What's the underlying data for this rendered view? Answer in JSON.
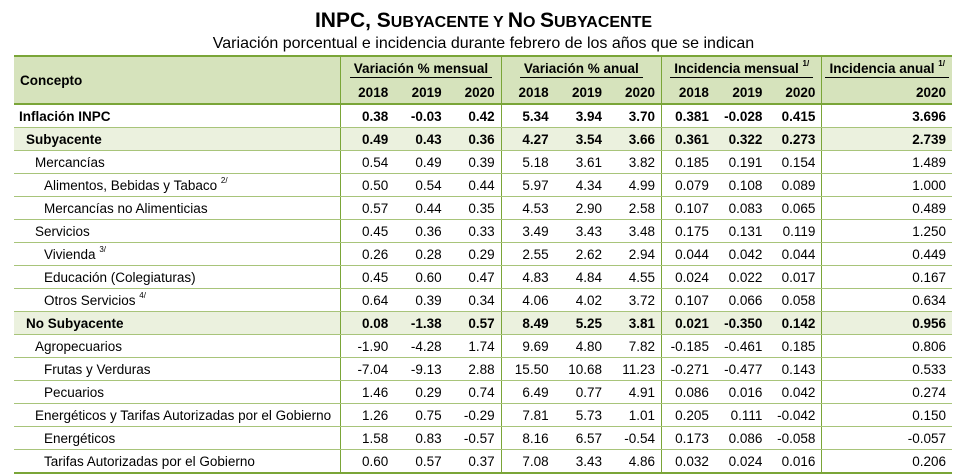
{
  "title": {
    "prefix": "INPC, ",
    "s_big": "S",
    "s_small": "UBYACENTE ",
    "y_small": "Y ",
    "n_big": "N",
    "n_small": "O ",
    "s2_big": "S",
    "s2_small": "UBYACENTE"
  },
  "subtitle": "Variación porcentual e incidencia durante febrero de los años que se indican",
  "headers": {
    "concept": "Concepto",
    "groups": [
      {
        "label": "Variación % mensual",
        "note": ""
      },
      {
        "label": "Variación % anual",
        "note": ""
      },
      {
        "label": "Incidencia mensual",
        "note": "1/"
      },
      {
        "label": "Incidencia anual",
        "note": "1/"
      }
    ],
    "years": [
      "2018",
      "2019",
      "2020",
      "2018",
      "2019",
      "2020",
      "2018",
      "2019",
      "2020",
      "2020"
    ]
  },
  "rows": [
    {
      "label": "Inflación INPC",
      "note": "",
      "values": [
        "0.38",
        "-0.03",
        "0.42",
        "5.34",
        "3.94",
        "3.70",
        "0.381",
        "-0.028",
        "0.415",
        "3.696"
      ]
    },
    {
      "label": "Subyacente",
      "note": "",
      "values": [
        "0.49",
        "0.43",
        "0.36",
        "4.27",
        "3.54",
        "3.66",
        "0.361",
        "0.322",
        "0.273",
        "2.739"
      ]
    },
    {
      "label": "Mercancías",
      "note": "",
      "values": [
        "0.54",
        "0.49",
        "0.39",
        "5.18",
        "3.61",
        "3.82",
        "0.185",
        "0.191",
        "0.154",
        "1.489"
      ]
    },
    {
      "label": "Alimentos, Bebidas y Tabaco",
      "note": "2/",
      "values": [
        "0.50",
        "0.54",
        "0.44",
        "5.97",
        "4.34",
        "4.99",
        "0.079",
        "0.108",
        "0.089",
        "1.000"
      ]
    },
    {
      "label": "Mercancías no Alimenticias",
      "note": "",
      "values": [
        "0.57",
        "0.44",
        "0.35",
        "4.53",
        "2.90",
        "2.58",
        "0.107",
        "0.083",
        "0.065",
        "0.489"
      ]
    },
    {
      "label": "Servicios",
      "note": "",
      "values": [
        "0.45",
        "0.36",
        "0.33",
        "3.49",
        "3.43",
        "3.48",
        "0.175",
        "0.131",
        "0.119",
        "1.250"
      ]
    },
    {
      "label": "Vivienda",
      "note": "3/",
      "values": [
        "0.26",
        "0.28",
        "0.29",
        "2.55",
        "2.62",
        "2.94",
        "0.044",
        "0.042",
        "0.044",
        "0.449"
      ]
    },
    {
      "label": "Educación (Colegiaturas)",
      "note": "",
      "values": [
        "0.45",
        "0.60",
        "0.47",
        "4.83",
        "4.84",
        "4.55",
        "0.024",
        "0.022",
        "0.017",
        "0.167"
      ]
    },
    {
      "label": "Otros Servicios",
      "note": "4/",
      "values": [
        "0.64",
        "0.39",
        "0.34",
        "4.06",
        "4.02",
        "3.72",
        "0.107",
        "0.066",
        "0.058",
        "0.634"
      ]
    },
    {
      "label": "No Subyacente",
      "note": "",
      "values": [
        "0.08",
        "-1.38",
        "0.57",
        "8.49",
        "5.25",
        "3.81",
        "0.021",
        "-0.350",
        "0.142",
        "0.956"
      ]
    },
    {
      "label": "Agropecuarios",
      "note": "",
      "values": [
        "-1.90",
        "-4.28",
        "1.74",
        "9.69",
        "4.80",
        "7.82",
        "-0.185",
        "-0.461",
        "0.185",
        "0.806"
      ]
    },
    {
      "label": "Frutas y Verduras",
      "note": "",
      "values": [
        "-7.04",
        "-9.13",
        "2.88",
        "15.50",
        "10.68",
        "11.23",
        "-0.271",
        "-0.477",
        "0.143",
        "0.533"
      ]
    },
    {
      "label": "Pecuarios",
      "note": "",
      "values": [
        "1.46",
        "0.29",
        "0.74",
        "6.49",
        "0.77",
        "4.91",
        "0.086",
        "0.016",
        "0.042",
        "0.274"
      ]
    },
    {
      "label": "Energéticos y Tarifas Autorizadas por el Gobierno",
      "note": "",
      "values": [
        "1.26",
        "0.75",
        "-0.29",
        "7.81",
        "5.73",
        "1.01",
        "0.205",
        "0.111",
        "-0.042",
        "0.150"
      ]
    },
    {
      "label": "Energéticos",
      "note": "",
      "values": [
        "1.58",
        "0.83",
        "-0.57",
        "8.16",
        "6.57",
        "-0.54",
        "0.173",
        "0.086",
        "-0.058",
        "-0.057"
      ]
    },
    {
      "label": "Tarifas Autorizadas por el Gobierno",
      "note": "",
      "values": [
        "0.60",
        "0.57",
        "0.37",
        "7.08",
        "3.43",
        "4.86",
        "0.032",
        "0.024",
        "0.016",
        "0.206"
      ]
    }
  ],
  "colors": {
    "header_bg": "#d6e3bc",
    "shade_bg": "#ebf1de",
    "rule": "#7aa538"
  }
}
